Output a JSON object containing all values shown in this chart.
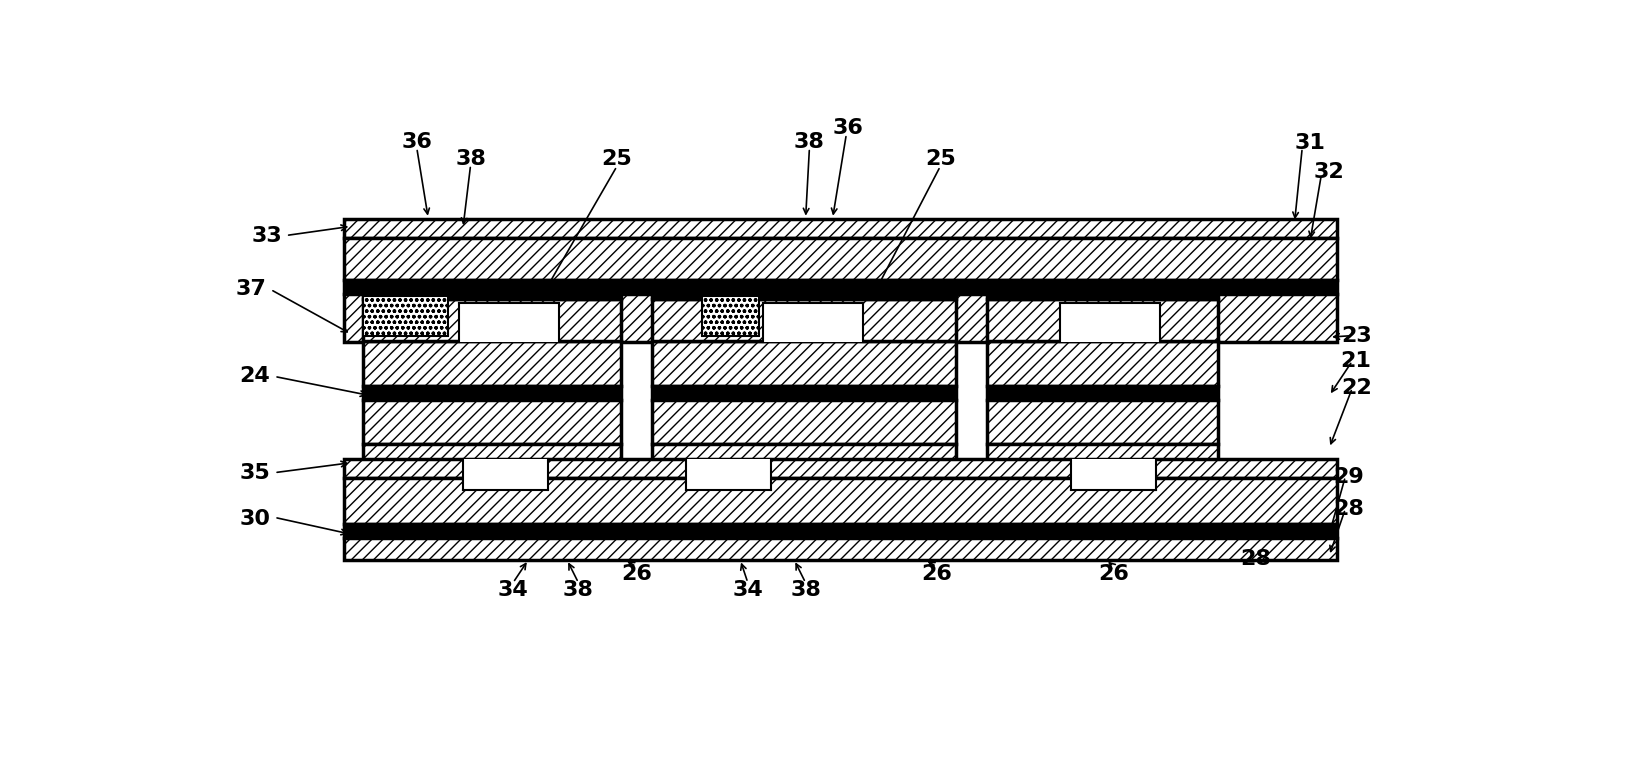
{
  "bg_color": "#ffffff",
  "line_color": "#000000",
  "fig_width": 16.38,
  "fig_height": 7.82,
  "label_fontsize": 16
}
